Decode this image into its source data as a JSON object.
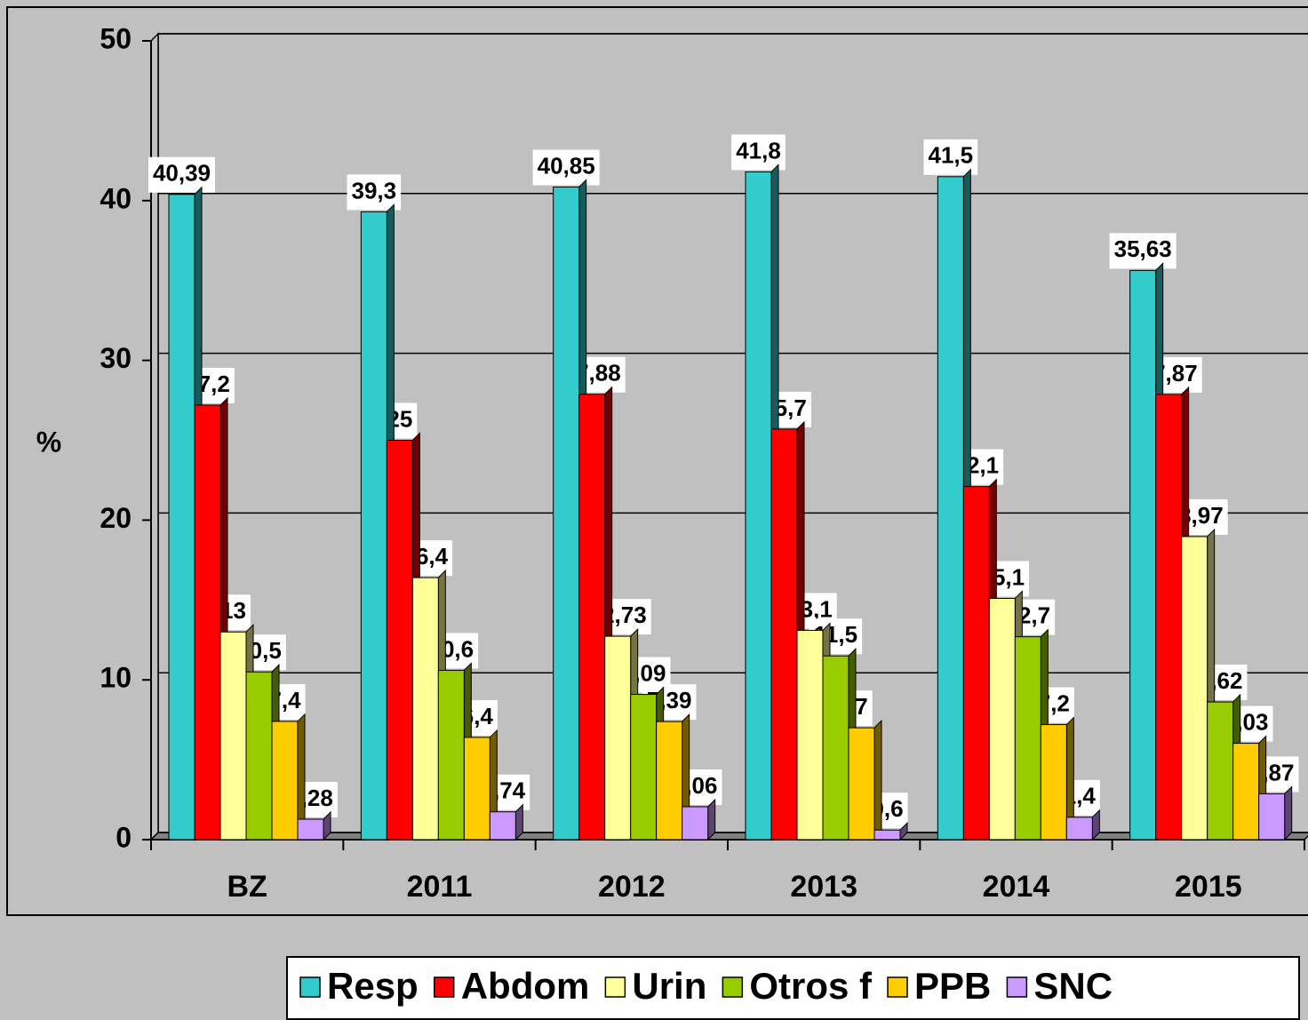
{
  "chart_data": {
    "type": "bar",
    "y_label": "%",
    "categories": [
      "BZ",
      "2011",
      "2012",
      "2013",
      "2014",
      "2015"
    ],
    "series": [
      {
        "name": "Resp",
        "color": "#33cccc",
        "values": [
          40.39,
          39.3,
          40.85,
          41.8,
          41.5,
          35.63
        ],
        "value_labels": [
          "40,39",
          "39,3",
          "40,85",
          "41,8",
          "41,5",
          "35,63"
        ]
      },
      {
        "name": "Abdom",
        "color": "#ff0000",
        "values": [
          27.2,
          25,
          27.88,
          25.7,
          22.1,
          27.87
        ],
        "value_labels": [
          "27,2",
          "25",
          "27,88",
          "25,7",
          "22,1",
          "27,87"
        ]
      },
      {
        "name": "Urin",
        "color": "#ffff99",
        "values": [
          13,
          16.4,
          12.73,
          13.1,
          15.1,
          18.97
        ],
        "value_labels": [
          "13",
          "16,4",
          "12,73",
          "13,1",
          "15,1",
          "18,97"
        ]
      },
      {
        "name": "Otros f",
        "color": "#99cc00",
        "values": [
          10.5,
          10.6,
          9.09,
          11.5,
          12.7,
          8.62
        ],
        "value_labels": [
          "10,5",
          "10,6",
          "9,09",
          "11,5",
          "12,7",
          "8,62"
        ]
      },
      {
        "name": "PPB",
        "color": "#ffcc00",
        "values": [
          7.4,
          6.4,
          7.39,
          7,
          7.2,
          6.03
        ],
        "value_labels": [
          "7,4",
          "6,4",
          "7,39",
          "7",
          "7,2",
          "6,03"
        ]
      },
      {
        "name": "SNC",
        "color": "#cc99ff",
        "values": [
          1.28,
          1.74,
          2.06,
          0.6,
          1.4,
          2.87
        ],
        "value_labels": [
          "1,28",
          "1,74",
          "2,06",
          "0,6",
          "1,4",
          "2,87"
        ]
      }
    ],
    "ylim": [
      0,
      50
    ],
    "yticks": [
      0,
      10,
      20,
      30,
      40,
      50
    ],
    "grid": true,
    "legend": "bottom"
  }
}
